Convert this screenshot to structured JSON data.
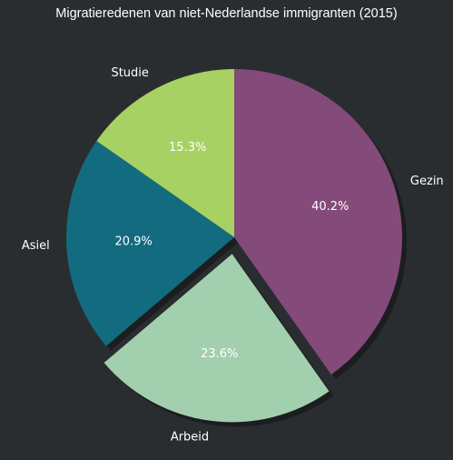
{
  "chart_data": {
    "type": "pie",
    "title": "Migratieredenen van niet-Nederlandse immigranten (2015)",
    "categories": [
      "Studie",
      "Asiel",
      "Arbeid",
      "Gezin"
    ],
    "values": [
      15.3,
      20.9,
      23.6,
      40.2
    ],
    "value_labels": [
      "15.3%",
      "20.9%",
      "23.6%",
      "40.2%"
    ],
    "colors": [
      "#a8d163",
      "#136b7f",
      "#a2cfae",
      "#844a7a"
    ],
    "exploded": [
      "Arbeid"
    ],
    "shadow": true,
    "start_angle_deg": 90,
    "direction": "counterclockwise",
    "legend": "none",
    "background": "#2a2d30"
  }
}
